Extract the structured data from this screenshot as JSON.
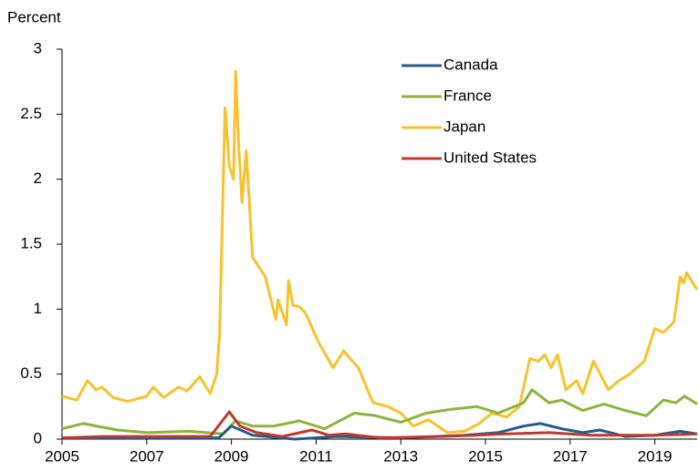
{
  "chart_data": {
    "type": "line",
    "y_label": "Percent",
    "xlim": [
      2005,
      2020
    ],
    "xticks": [
      2005,
      2007,
      2009,
      2011,
      2013,
      2015,
      2017,
      2019
    ],
    "ylim": [
      0,
      3
    ],
    "yticks": [
      0,
      0.5,
      1,
      1.5,
      2,
      2.5,
      3
    ],
    "grid": false,
    "legend": "upper right",
    "series": [
      {
        "name": "Canada",
        "color": "#245b8d",
        "x": [
          2005,
          2008.7,
          2009.0,
          2009.5,
          2010.5,
          2011.5,
          2013,
          2014.5,
          2015.3,
          2015.9,
          2016.3,
          2016.8,
          2017.3,
          2017.7,
          2018.3,
          2019,
          2019.6,
          2020
        ],
        "values": [
          0.01,
          0.01,
          0.1,
          0.03,
          0.0,
          0.02,
          0.01,
          0.03,
          0.05,
          0.1,
          0.12,
          0.08,
          0.05,
          0.07,
          0.02,
          0.03,
          0.06,
          0.04
        ]
      },
      {
        "name": "France",
        "color": "#8cb43c",
        "x": [
          2005,
          2005.5,
          2006.3,
          2007,
          2008,
          2008.8,
          2009.1,
          2009.5,
          2010,
          2010.6,
          2011.2,
          2011.9,
          2012.4,
          2013,
          2013.6,
          2014.2,
          2014.8,
          2015.3,
          2015.9,
          2016.1,
          2016.5,
          2016.8,
          2017.3,
          2017.8,
          2018.3,
          2018.8,
          2019.2,
          2019.5,
          2019.7,
          2020
        ],
        "values": [
          0.08,
          0.12,
          0.07,
          0.05,
          0.06,
          0.04,
          0.14,
          0.1,
          0.1,
          0.14,
          0.08,
          0.2,
          0.18,
          0.13,
          0.2,
          0.23,
          0.25,
          0.2,
          0.28,
          0.38,
          0.28,
          0.3,
          0.22,
          0.27,
          0.22,
          0.18,
          0.3,
          0.28,
          0.33,
          0.27
        ]
      },
      {
        "name": "Japan",
        "color": "#f8c22c",
        "x": [
          2005,
          2005.35,
          2005.6,
          2005.8,
          2005.95,
          2006.2,
          2006.55,
          2007.0,
          2007.15,
          2007.4,
          2007.75,
          2007.95,
          2008.25,
          2008.5,
          2008.65,
          2008.72,
          2008.85,
          2008.95,
          2009.05,
          2009.1,
          2009.18,
          2009.25,
          2009.35,
          2009.5,
          2009.8,
          2010.05,
          2010.1,
          2010.3,
          2010.35,
          2010.45,
          2010.6,
          2010.75,
          2011.05,
          2011.4,
          2011.6,
          2011.65,
          2011.8,
          2012.0,
          2012.25,
          2012.35,
          2012.7,
          2013.0,
          2013.3,
          2013.65,
          2014.1,
          2014.5,
          2014.85,
          2015.15,
          2015.5,
          2015.8,
          2016.05,
          2016.25,
          2016.4,
          2016.55,
          2016.7,
          2016.9,
          2017.15,
          2017.3,
          2017.55,
          2017.9,
          2018.15,
          2018.4,
          2018.75,
          2019.0,
          2019.2,
          2019.45,
          2019.6,
          2019.68,
          2019.75,
          2020.0
        ],
        "values": [
          0.33,
          0.3,
          0.45,
          0.38,
          0.4,
          0.32,
          0.29,
          0.33,
          0.4,
          0.32,
          0.4,
          0.37,
          0.48,
          0.35,
          0.5,
          0.8,
          2.55,
          2.1,
          2.0,
          2.83,
          2.2,
          1.82,
          2.22,
          1.4,
          1.25,
          0.92,
          1.07,
          0.88,
          1.22,
          1.03,
          1.02,
          0.97,
          0.75,
          0.55,
          0.65,
          0.68,
          0.62,
          0.55,
          0.35,
          0.28,
          0.25,
          0.2,
          0.1,
          0.15,
          0.05,
          0.06,
          0.12,
          0.2,
          0.17,
          0.25,
          0.62,
          0.6,
          0.65,
          0.55,
          0.65,
          0.38,
          0.45,
          0.35,
          0.6,
          0.38,
          0.45,
          0.5,
          0.6,
          0.85,
          0.82,
          0.9,
          1.25,
          1.2,
          1.28,
          1.15
        ]
      },
      {
        "name": "United States",
        "color": "#c0392b",
        "x": [
          2005,
          2006,
          2008.5,
          2008.95,
          2009.2,
          2009.6,
          2010.2,
          2010.9,
          2011.3,
          2011.7,
          2012.5,
          2014,
          2015.5,
          2016.5,
          2017.5,
          2019,
          2020
        ],
        "values": [
          0.01,
          0.02,
          0.02,
          0.21,
          0.1,
          0.05,
          0.02,
          0.07,
          0.03,
          0.04,
          0.01,
          0.02,
          0.04,
          0.05,
          0.03,
          0.03,
          0.04
        ]
      }
    ]
  }
}
